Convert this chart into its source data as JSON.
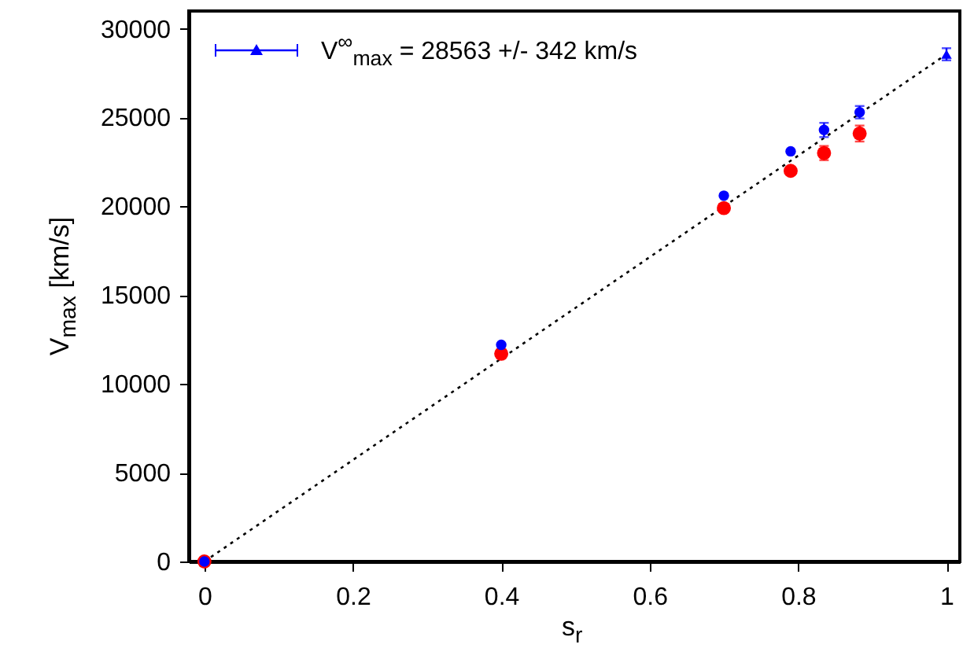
{
  "chart_data": {
    "type": "scatter",
    "xlabel": "s$_{r}$",
    "ylabel": "V$_{max}$ [km/s]",
    "xlim": [
      -0.021,
      1.018
    ],
    "ylim": [
      0,
      31000
    ],
    "xticks": [
      0,
      0.2,
      0.4,
      0.6,
      0.8,
      1
    ],
    "yticks": [
      0,
      5000,
      10000,
      15000,
      20000,
      25000,
      30000
    ],
    "grid": false,
    "legend": "top left",
    "marker": "circle",
    "series": [
      {
        "type": "line",
        "color": "#000000",
        "line_style": "dotted",
        "marker": "none",
        "x": [
          0,
          1
        ],
        "values": [
          0,
          28563
        ]
      },
      {
        "color": "#ff0000",
        "x": [
          0,
          0.4,
          0.7,
          0.79,
          0.835,
          0.883
        ],
        "values": [
          0,
          11700,
          19900,
          22000,
          23000,
          24100
        ],
        "errors": [
          null,
          null,
          null,
          null,
          400,
          450
        ]
      },
      {
        "color": "#0000ff",
        "x": [
          0,
          0.4,
          0.7,
          0.79,
          0.835,
          0.883
        ],
        "values": [
          0,
          12200,
          20600,
          23100,
          24300,
          25300
        ],
        "errors": [
          null,
          null,
          null,
          null,
          400,
          350
        ]
      },
      {
        "name": "V$^{∞}$$_{max}$ = 28563 +/- 342 km/s",
        "color": "#0000ff",
        "marker": "triangle",
        "x": [
          1
        ],
        "values": [
          28563
        ],
        "errors": [
          342
        ]
      }
    ]
  }
}
